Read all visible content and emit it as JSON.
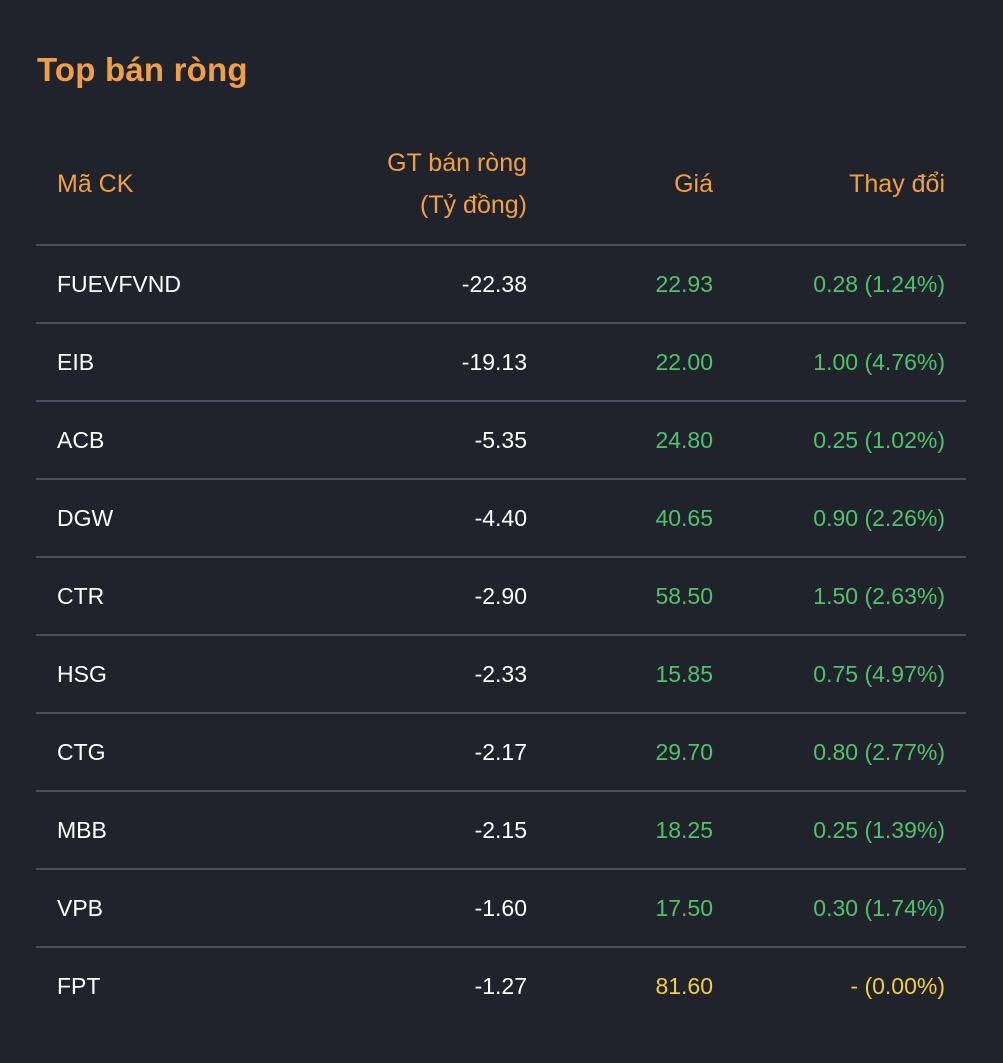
{
  "title": "Top bán ròng",
  "colors": {
    "background": "#20232c",
    "accent": "#f0a040",
    "up": "#4fc26a",
    "reference": "#f2cf3a",
    "divider": "#4b4f5d"
  },
  "columns": {
    "code": "Mã CK",
    "value_line1": "GT bán ròng",
    "value_line2": "(Tỷ đồng)",
    "price": "Giá",
    "change": "Thay đổi"
  },
  "rows": [
    {
      "code": "FUEVFVND",
      "value": "-22.38",
      "price": "22.93",
      "change": "0.28 (1.24%)",
      "status": "up"
    },
    {
      "code": "EIB",
      "value": "-19.13",
      "price": "22.00",
      "change": "1.00 (4.76%)",
      "status": "up"
    },
    {
      "code": "ACB",
      "value": "-5.35",
      "price": "24.80",
      "change": "0.25 (1.02%)",
      "status": "up"
    },
    {
      "code": "DGW",
      "value": "-4.40",
      "price": "40.65",
      "change": "0.90 (2.26%)",
      "status": "up"
    },
    {
      "code": "CTR",
      "value": "-2.90",
      "price": "58.50",
      "change": "1.50 (2.63%)",
      "status": "up"
    },
    {
      "code": "HSG",
      "value": "-2.33",
      "price": "15.85",
      "change": "0.75 (4.97%)",
      "status": "up"
    },
    {
      "code": "CTG",
      "value": "-2.17",
      "price": "29.70",
      "change": "0.80 (2.77%)",
      "status": "up"
    },
    {
      "code": "MBB",
      "value": "-2.15",
      "price": "18.25",
      "change": "0.25 (1.39%)",
      "status": "up"
    },
    {
      "code": "VPB",
      "value": "-1.60",
      "price": "17.50",
      "change": "0.30 (1.74%)",
      "status": "up"
    },
    {
      "code": "FPT",
      "value": "-1.27",
      "price": "81.60",
      "change": "- (0.00%)",
      "status": "ref"
    }
  ]
}
